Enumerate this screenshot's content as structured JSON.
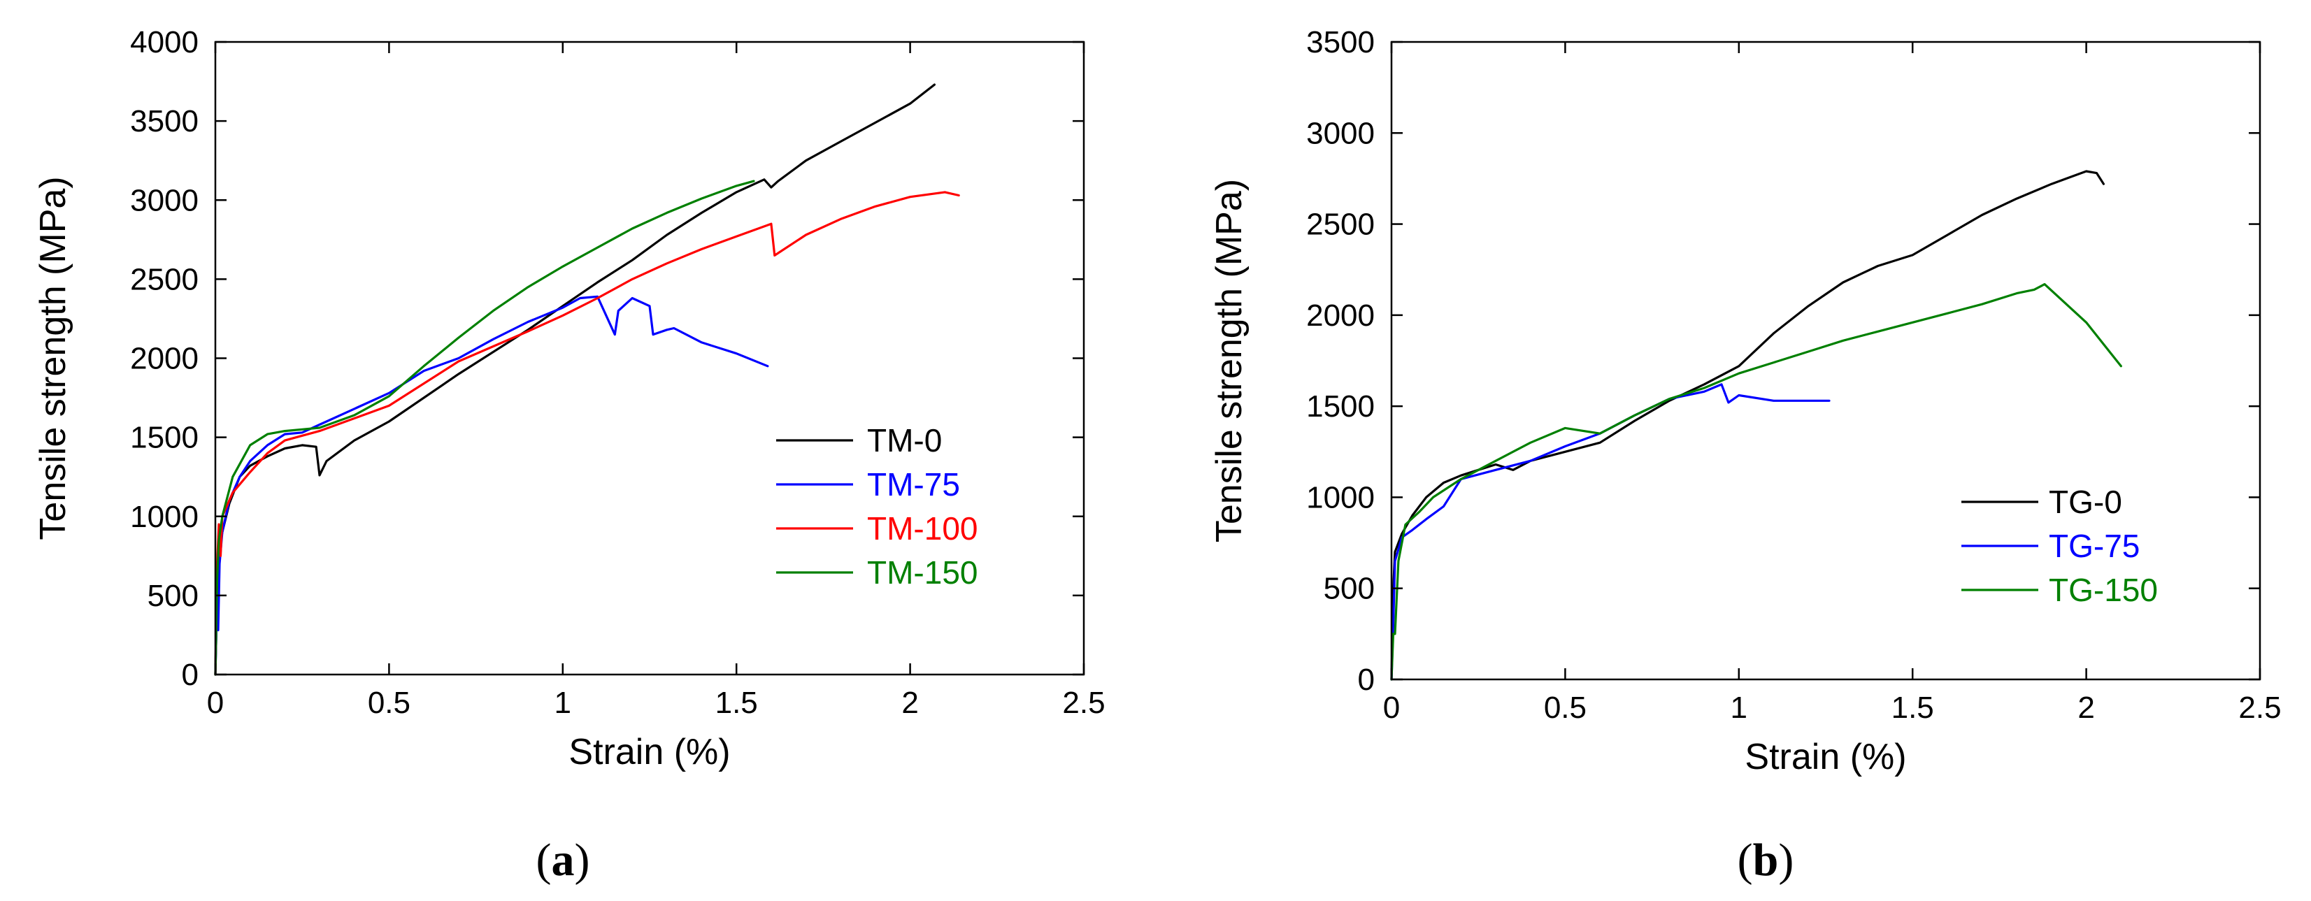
{
  "figure": {
    "panel_a_caption": {
      "open": "(",
      "letter": "a",
      "close": ")"
    },
    "panel_b_caption": {
      "open": "(",
      "letter": "b",
      "close": ")"
    }
  },
  "chart_data": [
    {
      "type": "line",
      "panel": "a",
      "xlabel": "Strain (%)",
      "ylabel": "Tensile strength (MPa)",
      "xlim": [
        0,
        2.5
      ],
      "ylim": [
        0,
        4000
      ],
      "xticks": [
        0,
        0.5,
        1,
        1.5,
        2,
        2.5
      ],
      "xtick_labels": [
        "0",
        "0.5",
        "1",
        "1.5",
        "2",
        "2.5"
      ],
      "yticks": [
        0,
        500,
        1000,
        1500,
        2000,
        2500,
        3000,
        3500,
        4000
      ],
      "ytick_labels": [
        "0",
        "500",
        "1000",
        "1500",
        "2000",
        "2500",
        "3000",
        "3500",
        "4000"
      ],
      "legend_position": "center-right",
      "series": [
        {
          "name": "TM-0",
          "color": "#000000",
          "x": [
            0,
            0.005,
            0.01,
            0.02,
            0.04,
            0.07,
            0.1,
            0.15,
            0.2,
            0.25,
            0.29,
            0.3,
            0.32,
            0.4,
            0.5,
            0.7,
            0.9,
            1.0,
            1.1,
            1.2,
            1.3,
            1.4,
            1.5,
            1.58,
            1.6,
            1.62,
            1.7,
            1.8,
            1.9,
            2.0,
            2.07
          ],
          "y": [
            0,
            500,
            780,
            900,
            1080,
            1250,
            1320,
            1380,
            1430,
            1450,
            1440,
            1260,
            1350,
            1480,
            1600,
            1900,
            2180,
            2330,
            2480,
            2620,
            2780,
            2920,
            3050,
            3130,
            3080,
            3120,
            3250,
            3370,
            3490,
            3610,
            3730
          ]
        },
        {
          "name": "TM-75",
          "color": "#0000ff",
          "x": [
            0,
            0.003,
            0.008,
            0.012,
            0.02,
            0.04,
            0.07,
            0.1,
            0.15,
            0.2,
            0.25,
            0.3,
            0.4,
            0.5,
            0.6,
            0.7,
            0.8,
            0.9,
            1.0,
            1.05,
            1.1,
            1.15,
            1.16,
            1.2,
            1.25,
            1.26,
            1.3,
            1.32,
            1.4,
            1.5,
            1.59
          ],
          "y": [
            0,
            300,
            280,
            700,
            900,
            1100,
            1250,
            1350,
            1450,
            1520,
            1530,
            1580,
            1680,
            1780,
            1920,
            2000,
            2120,
            2230,
            2320,
            2380,
            2390,
            2150,
            2300,
            2380,
            2330,
            2150,
            2180,
            2190,
            2100,
            2030,
            1950
          ]
        },
        {
          "name": "TM-100",
          "color": "#ff0000",
          "x": [
            0,
            0.005,
            0.01,
            0.015,
            0.02,
            0.05,
            0.1,
            0.15,
            0.2,
            0.3,
            0.4,
            0.5,
            0.7,
            0.9,
            1.0,
            1.1,
            1.2,
            1.3,
            1.4,
            1.5,
            1.6,
            1.61,
            1.7,
            1.8,
            1.9,
            2.0,
            2.1,
            2.14
          ],
          "y": [
            0,
            700,
            950,
            750,
            1000,
            1150,
            1280,
            1400,
            1480,
            1540,
            1620,
            1700,
            1980,
            2170,
            2270,
            2380,
            2500,
            2600,
            2690,
            2770,
            2850,
            2650,
            2780,
            2880,
            2960,
            3020,
            3050,
            3030
          ]
        },
        {
          "name": "TM-150",
          "color": "#008000",
          "x": [
            0,
            0.005,
            0.01,
            0.02,
            0.05,
            0.1,
            0.15,
            0.2,
            0.25,
            0.3,
            0.4,
            0.5,
            0.6,
            0.7,
            0.8,
            0.9,
            1.0,
            1.1,
            1.2,
            1.3,
            1.4,
            1.5,
            1.55
          ],
          "y": [
            0,
            600,
            850,
            1000,
            1250,
            1450,
            1520,
            1540,
            1550,
            1560,
            1640,
            1760,
            1950,
            2130,
            2300,
            2450,
            2580,
            2700,
            2820,
            2920,
            3010,
            3090,
            3120
          ]
        }
      ]
    },
    {
      "type": "line",
      "panel": "b",
      "xlabel": "Strain (%)",
      "ylabel": "Tensile strength (MPa)",
      "xlim": [
        0,
        2.5
      ],
      "ylim": [
        0,
        3500
      ],
      "xticks": [
        0,
        0.5,
        1,
        1.5,
        2,
        2.5
      ],
      "xtick_labels": [
        "0",
        "0.5",
        "1",
        "1.5",
        "2",
        "2.5"
      ],
      "yticks": [
        0,
        500,
        1000,
        1500,
        2000,
        2500,
        3000,
        3500
      ],
      "ytick_labels": [
        "0",
        "500",
        "1000",
        "1500",
        "2000",
        "2500",
        "3000",
        "3500"
      ],
      "legend_position": "lower-right",
      "series": [
        {
          "name": "TG-0",
          "color": "#000000",
          "x": [
            0,
            0.005,
            0.01,
            0.03,
            0.06,
            0.1,
            0.15,
            0.2,
            0.25,
            0.3,
            0.35,
            0.4,
            0.5,
            0.6,
            0.7,
            0.8,
            0.9,
            1.0,
            1.1,
            1.2,
            1.3,
            1.4,
            1.5,
            1.6,
            1.7,
            1.8,
            1.9,
            2.0,
            2.03,
            2.05
          ],
          "y": [
            0,
            500,
            700,
            800,
            900,
            1000,
            1080,
            1120,
            1150,
            1180,
            1150,
            1200,
            1250,
            1300,
            1420,
            1530,
            1620,
            1720,
            1900,
            2050,
            2180,
            2270,
            2330,
            2440,
            2550,
            2640,
            2720,
            2790,
            2780,
            2720
          ]
        },
        {
          "name": "TG-75",
          "color": "#0000ff",
          "x": [
            0,
            0.005,
            0.01,
            0.03,
            0.06,
            0.1,
            0.15,
            0.2,
            0.3,
            0.4,
            0.5,
            0.6,
            0.7,
            0.8,
            0.9,
            0.95,
            0.97,
            1.0,
            1.1,
            1.2,
            1.26
          ],
          "y": [
            0,
            300,
            650,
            780,
            820,
            880,
            950,
            1100,
            1150,
            1200,
            1280,
            1350,
            1450,
            1540,
            1580,
            1620,
            1520,
            1560,
            1530,
            1530,
            1530
          ]
        },
        {
          "name": "TG-150",
          "color": "#008000",
          "x": [
            0,
            0.005,
            0.01,
            0.02,
            0.04,
            0.08,
            0.12,
            0.2,
            0.3,
            0.4,
            0.5,
            0.6,
            0.7,
            0.8,
            0.9,
            1.0,
            1.1,
            1.2,
            1.3,
            1.4,
            1.5,
            1.6,
            1.7,
            1.8,
            1.85,
            1.88,
            2.0,
            2.1
          ],
          "y": [
            0,
            250,
            250,
            650,
            850,
            920,
            1000,
            1100,
            1200,
            1300,
            1380,
            1350,
            1450,
            1540,
            1600,
            1680,
            1740,
            1800,
            1860,
            1910,
            1960,
            2010,
            2060,
            2120,
            2140,
            2170,
            1960,
            1720
          ]
        }
      ]
    }
  ]
}
